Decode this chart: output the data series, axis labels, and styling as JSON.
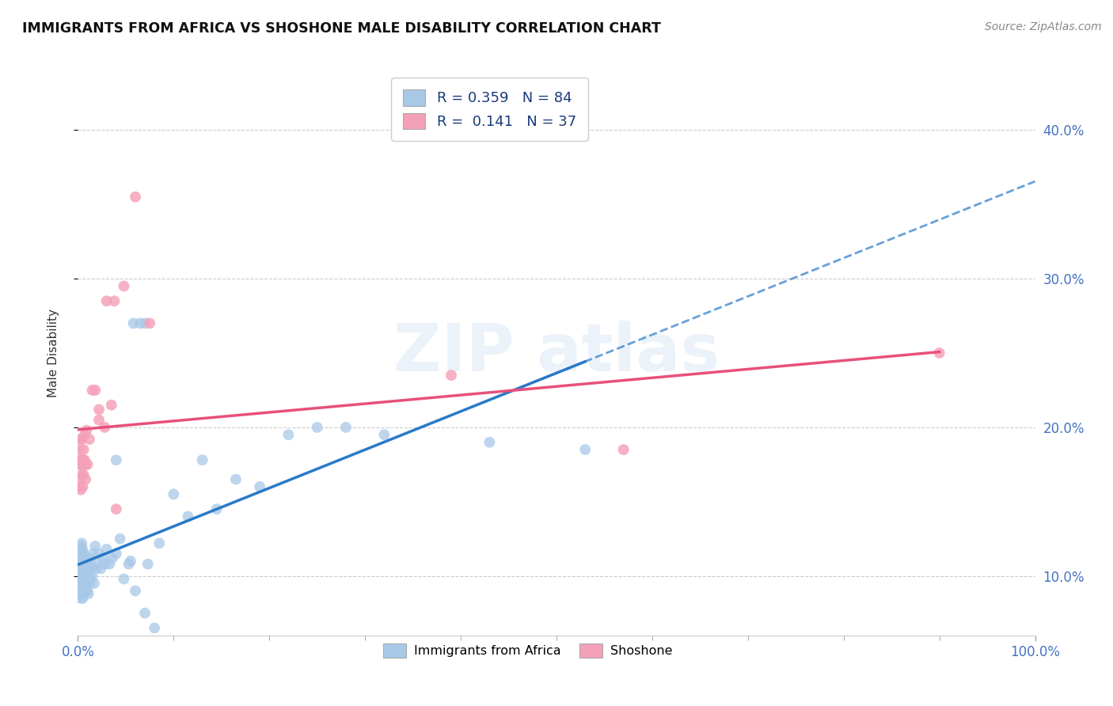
{
  "title": "IMMIGRANTS FROM AFRICA VS SHOSHONE MALE DISABILITY CORRELATION CHART",
  "source": "Source: ZipAtlas.com",
  "ylabel": "Male Disability",
  "xlim": [
    0.0,
    1.0
  ],
  "ylim": [
    0.06,
    0.44
  ],
  "xtick_positions": [
    0.0,
    1.0
  ],
  "xtick_labels": [
    "0.0%",
    "100.0%"
  ],
  "ytick_positions": [
    0.1,
    0.2,
    0.3,
    0.4
  ],
  "ytick_labels": [
    "10.0%",
    "20.0%",
    "30.0%",
    "40.0%"
  ],
  "blue_color": "#a8c8e8",
  "pink_color": "#f4a0b8",
  "blue_line_color": "#2979c8",
  "pink_line_color": "#e8507a",
  "dashed_line_color": "#2979c8",
  "legend_line1_R": "R = 0.359",
  "legend_line1_N": "N = 84",
  "legend_line2_R": "R =  0.141",
  "legend_line2_N": "N = 37",
  "label1": "Immigrants from Africa",
  "label2": "Shoshone",
  "blue_x": [
    0.001,
    0.001,
    0.001,
    0.001,
    0.002,
    0.002,
    0.002,
    0.002,
    0.003,
    0.003,
    0.003,
    0.003,
    0.003,
    0.004,
    0.004,
    0.004,
    0.004,
    0.004,
    0.005,
    0.005,
    0.005,
    0.005,
    0.005,
    0.006,
    0.006,
    0.006,
    0.006,
    0.007,
    0.007,
    0.007,
    0.008,
    0.008,
    0.008,
    0.009,
    0.009,
    0.01,
    0.01,
    0.01,
    0.011,
    0.011,
    0.012,
    0.012,
    0.013,
    0.013,
    0.014,
    0.015,
    0.016,
    0.017,
    0.018,
    0.019,
    0.02,
    0.022,
    0.024,
    0.026,
    0.028,
    0.03,
    0.033,
    0.036,
    0.04,
    0.044,
    0.048,
    0.053,
    0.058,
    0.065,
    0.073,
    0.04,
    0.055,
    0.07,
    0.085,
    0.1,
    0.115,
    0.13,
    0.145,
    0.165,
    0.19,
    0.28,
    0.06,
    0.07,
    0.08,
    0.25,
    0.22,
    0.32,
    0.43,
    0.53
  ],
  "blue_y": [
    0.095,
    0.1,
    0.108,
    0.115,
    0.088,
    0.098,
    0.108,
    0.118,
    0.085,
    0.095,
    0.105,
    0.112,
    0.12,
    0.09,
    0.098,
    0.108,
    0.115,
    0.122,
    0.085,
    0.092,
    0.1,
    0.11,
    0.118,
    0.088,
    0.095,
    0.105,
    0.115,
    0.092,
    0.102,
    0.112,
    0.09,
    0.1,
    0.112,
    0.095,
    0.108,
    0.09,
    0.098,
    0.11,
    0.088,
    0.105,
    0.095,
    0.112,
    0.098,
    0.11,
    0.105,
    0.1,
    0.115,
    0.095,
    0.12,
    0.105,
    0.108,
    0.115,
    0.105,
    0.112,
    0.108,
    0.118,
    0.108,
    0.112,
    0.115,
    0.125,
    0.098,
    0.108,
    0.27,
    0.27,
    0.108,
    0.178,
    0.11,
    0.27,
    0.122,
    0.155,
    0.14,
    0.178,
    0.145,
    0.165,
    0.16,
    0.2,
    0.09,
    0.075,
    0.065,
    0.2,
    0.195,
    0.195,
    0.19,
    0.185
  ],
  "pink_x": [
    0.001,
    0.001,
    0.002,
    0.002,
    0.002,
    0.003,
    0.003,
    0.003,
    0.004,
    0.004,
    0.004,
    0.005,
    0.005,
    0.006,
    0.006,
    0.007,
    0.007,
    0.008,
    0.008,
    0.009,
    0.01,
    0.012,
    0.015,
    0.018,
    0.022,
    0.03,
    0.038,
    0.048,
    0.06,
    0.075,
    0.035,
    0.028,
    0.04,
    0.022,
    0.39,
    0.57,
    0.9
  ],
  "pink_y": [
    0.16,
    0.175,
    0.165,
    0.178,
    0.185,
    0.158,
    0.175,
    0.192,
    0.168,
    0.178,
    0.192,
    0.16,
    0.178,
    0.168,
    0.185,
    0.195,
    0.178,
    0.165,
    0.175,
    0.198,
    0.175,
    0.192,
    0.225,
    0.225,
    0.212,
    0.285,
    0.285,
    0.295,
    0.355,
    0.27,
    0.215,
    0.2,
    0.145,
    0.205,
    0.235,
    0.185,
    0.25
  ]
}
